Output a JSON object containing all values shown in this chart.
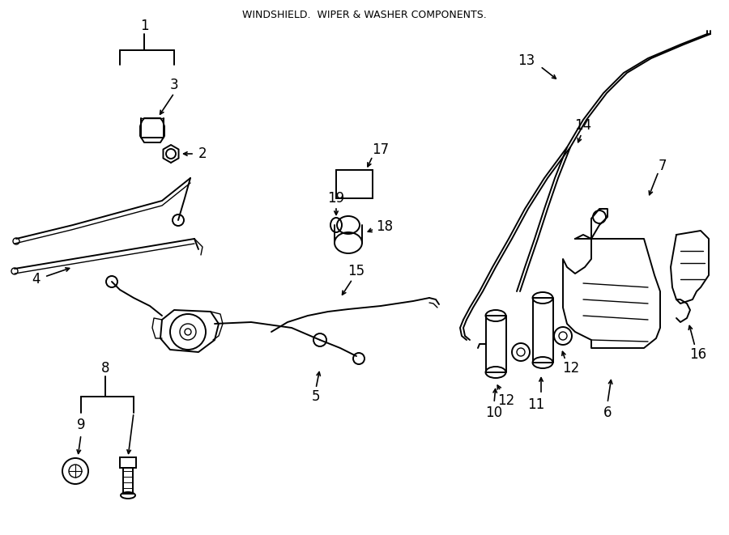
{
  "title": "WINDSHIELD.  WIPER & WASHER COMPONENTS.",
  "bg_color": "#ffffff",
  "line_color": "#000000",
  "text_color": "#000000",
  "fig_width": 9.0,
  "fig_height": 6.61,
  "dpi": 100
}
